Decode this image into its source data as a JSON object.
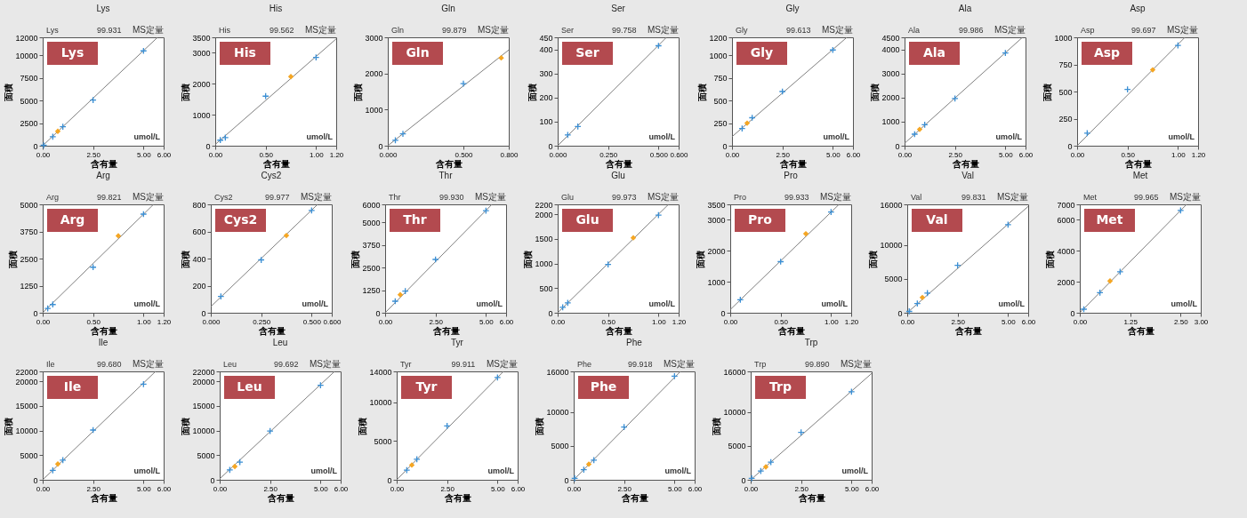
{
  "chart_data": [
    {
      "type": "scatter",
      "title": "Lys",
      "xlabel": "含有量",
      "ylabel": "面積",
      "annotations": [
        "Lys",
        "99.931",
        "MS定量",
        "Lys",
        "umol/L"
      ],
      "xlim": [
        0,
        6
      ],
      "xticks": [
        {
          "value": 0,
          "label": "0.00"
        },
        {
          "value": 2.5,
          "label": "2.50"
        },
        {
          "value": 5,
          "label": "5.00"
        },
        {
          "value": 6,
          "label": "6.00"
        }
      ],
      "ylim": [
        0,
        12000
      ],
      "yticks": [
        0,
        2500,
        5000,
        7500,
        10000,
        12000
      ],
      "series": [
        {
          "type": "line",
          "color": "#7f7f7f",
          "x": [
            0,
            5.7
          ],
          "values": [
            0,
            12000
          ]
        },
        {
          "type": "scatter",
          "marker": "cross",
          "color": "#3b8fd4",
          "x": [
            0.05,
            0.5,
            1.0,
            2.5,
            5.0
          ],
          "values": [
            50,
            1000,
            2100,
            5050,
            10500
          ]
        },
        {
          "type": "scatter",
          "marker": "diamond",
          "color": "#f5a623",
          "x": [
            0.75
          ],
          "values": [
            1600
          ]
        }
      ]
    },
    {
      "type": "scatter",
      "title": "His",
      "xlabel": "含有量",
      "ylabel": "面積",
      "annotations": [
        "His",
        "99.562",
        "MS定量",
        "His",
        "umol/L"
      ],
      "xlim": [
        0,
        1.2
      ],
      "xticks": [
        {
          "value": 0,
          "label": "0.00"
        },
        {
          "value": 0.5,
          "label": "0.50"
        },
        {
          "value": 1,
          "label": "1.00"
        },
        {
          "value": 1.2,
          "label": "1.20"
        }
      ],
      "ylim": [
        0,
        3500
      ],
      "yticks": [
        0,
        1000,
        2000,
        3000,
        3500
      ],
      "series": [
        {
          "type": "line",
          "color": "#7f7f7f",
          "x": [
            0,
            1.2
          ],
          "values": [
            40,
            3450
          ]
        },
        {
          "type": "scatter",
          "marker": "cross",
          "color": "#3b8fd4",
          "x": [
            0.05,
            0.1,
            0.5,
            1.0
          ],
          "values": [
            180,
            260,
            1600,
            2850
          ]
        },
        {
          "type": "scatter",
          "marker": "diamond",
          "color": "#f5a623",
          "x": [
            0.75
          ],
          "values": [
            2230
          ]
        }
      ]
    },
    {
      "type": "scatter",
      "title": "Gln",
      "xlabel": "含有量",
      "ylabel": "面積",
      "annotations": [
        "Gln",
        "99.879",
        "MS定量",
        "Gln"
      ],
      "xlim": [
        0,
        0.8
      ],
      "xticks": [
        {
          "value": 0,
          "label": "0.000"
        },
        {
          "value": 0.5,
          "label": "0.500"
        },
        {
          "value": 0.8,
          "label": "0.800"
        }
      ],
      "ylim": [
        0,
        3000
      ],
      "yticks": [
        0,
        1000,
        2000,
        3000
      ],
      "series": [
        {
          "type": "line",
          "color": "#7f7f7f",
          "x": [
            0,
            0.8
          ],
          "values": [
            0,
            2650
          ]
        },
        {
          "type": "scatter",
          "marker": "cross",
          "color": "#3b8fd4",
          "x": [
            0.05,
            0.1,
            0.5
          ],
          "values": [
            150,
            330,
            1720
          ]
        },
        {
          "type": "scatter",
          "marker": "diamond",
          "color": "#f5a623",
          "x": [
            0.75
          ],
          "values": [
            2430
          ]
        }
      ]
    },
    {
      "type": "scatter",
      "title": "Ser",
      "xlabel": "含有量",
      "ylabel": "面積",
      "annotations": [
        "Ser",
        "99.758",
        "MS定量",
        "Ser",
        "umol/L"
      ],
      "xlim": [
        0,
        0.6
      ],
      "xticks": [
        {
          "value": 0,
          "label": "0.000"
        },
        {
          "value": 0.25,
          "label": "0.250"
        },
        {
          "value": 0.5,
          "label": "0.500"
        },
        {
          "value": 0.6,
          "label": "0.600"
        }
      ],
      "ylim": [
        0,
        450
      ],
      "yticks": [
        0,
        100,
        200,
        300,
        400,
        450
      ],
      "series": [
        {
          "type": "line",
          "color": "#7f7f7f",
          "x": [
            0,
            0.54
          ],
          "values": [
            0,
            450
          ]
        },
        {
          "type": "scatter",
          "marker": "cross",
          "color": "#3b8fd4",
          "x": [
            0.05,
            0.1,
            0.5
          ],
          "values": [
            45,
            80,
            415
          ]
        }
      ]
    },
    {
      "type": "scatter",
      "title": "Gly",
      "xlabel": "含有量",
      "ylabel": "面積",
      "annotations": [
        "Gly",
        "99.613",
        "MS定量",
        "Gly",
        "umol/L"
      ],
      "xlim": [
        0,
        6
      ],
      "xticks": [
        {
          "value": 0,
          "label": "0.00"
        },
        {
          "value": 2.5,
          "label": "2.50"
        },
        {
          "value": 5,
          "label": "5.00"
        },
        {
          "value": 6,
          "label": "6.00"
        }
      ],
      "ylim": [
        0,
        1200
      ],
      "yticks": [
        0,
        250,
        500,
        750,
        1000,
        1200
      ],
      "series": [
        {
          "type": "line",
          "color": "#7f7f7f",
          "x": [
            0,
            5.7
          ],
          "values": [
            100,
            1200
          ]
        },
        {
          "type": "scatter",
          "marker": "cross",
          "color": "#3b8fd4",
          "x": [
            0.5,
            1.0,
            2.5,
            5.0
          ],
          "values": [
            190,
            310,
            600,
            1060
          ]
        },
        {
          "type": "scatter",
          "marker": "diamond",
          "color": "#f5a623",
          "x": [
            0.75
          ],
          "values": [
            250
          ]
        }
      ]
    },
    {
      "type": "scatter",
      "title": "Ala",
      "xlabel": "含有量",
      "ylabel": "面積",
      "annotations": [
        "Ala",
        "99.986",
        "MS定量",
        "Ala",
        "umol/L"
      ],
      "xlim": [
        0,
        6
      ],
      "xticks": [
        {
          "value": 0,
          "label": "0.00"
        },
        {
          "value": 2.5,
          "label": "2.50"
        },
        {
          "value": 5,
          "label": "5.00"
        },
        {
          "value": 6,
          "label": "6.00"
        }
      ],
      "ylim": [
        0,
        4500
      ],
      "yticks": [
        0,
        1000,
        2000,
        3000,
        4000,
        4500
      ],
      "series": [
        {
          "type": "line",
          "color": "#7f7f7f",
          "x": [
            0,
            5.85
          ],
          "values": [
            100,
            4500
          ]
        },
        {
          "type": "scatter",
          "marker": "cross",
          "color": "#3b8fd4",
          "x": [
            0.5,
            1.0,
            2.5,
            5.0
          ],
          "values": [
            480,
            870,
            1960,
            3850
          ]
        },
        {
          "type": "scatter",
          "marker": "diamond",
          "color": "#f5a623",
          "x": [
            0.75
          ],
          "values": [
            680
          ]
        }
      ]
    },
    {
      "type": "scatter",
      "title": "Asp",
      "xlabel": "含有量",
      "ylabel": "面積",
      "annotations": [
        "Asp",
        "99.697",
        "MS定量",
        "Asp",
        "umol/L"
      ],
      "xlim": [
        0,
        1.2
      ],
      "xticks": [
        {
          "value": 0,
          "label": "0.00"
        },
        {
          "value": 0.5,
          "label": "0.50"
        },
        {
          "value": 1,
          "label": "1.00"
        },
        {
          "value": 1.2,
          "label": "1.20"
        }
      ],
      "ylim": [
        0,
        1000
      ],
      "yticks": [
        0,
        250,
        500,
        750,
        1000
      ],
      "series": [
        {
          "type": "line",
          "color": "#7f7f7f",
          "x": [
            0,
            1.07
          ],
          "values": [
            0,
            1000
          ]
        },
        {
          "type": "scatter",
          "marker": "cross",
          "color": "#3b8fd4",
          "x": [
            0.1,
            0.5,
            1.0
          ],
          "values": [
            115,
            520,
            925
          ]
        },
        {
          "type": "scatter",
          "marker": "diamond",
          "color": "#f5a623",
          "x": [
            0.75
          ],
          "values": [
            700
          ]
        }
      ]
    },
    {
      "type": "scatter",
      "title": "Arg",
      "xlabel": "含有量",
      "ylabel": "面積",
      "annotations": [
        "Arg",
        "99.821",
        "MS定量",
        "Arg",
        "umol/L"
      ],
      "xlim": [
        0,
        1.2
      ],
      "xticks": [
        {
          "value": 0,
          "label": "0.00"
        },
        {
          "value": 0.5,
          "label": "0.50"
        },
        {
          "value": 1,
          "label": "1.00"
        },
        {
          "value": 1.2,
          "label": "1.20"
        }
      ],
      "ylim": [
        0,
        5000
      ],
      "yticks": [
        0,
        1250,
        2500,
        3750,
        5000
      ],
      "series": [
        {
          "type": "line",
          "color": "#7f7f7f",
          "x": [
            0,
            1.1
          ],
          "values": [
            0,
            5000
          ]
        },
        {
          "type": "scatter",
          "marker": "cross",
          "color": "#3b8fd4",
          "x": [
            0.05,
            0.1,
            0.5,
            1.0
          ],
          "values": [
            200,
            380,
            2100,
            4550
          ]
        },
        {
          "type": "scatter",
          "marker": "diamond",
          "color": "#f5a623",
          "x": [
            0.75
          ],
          "values": [
            3550
          ]
        }
      ]
    },
    {
      "type": "scatter",
      "title": "Cys2",
      "xlabel": "含有量",
      "ylabel": "面積",
      "annotations": [
        "Cys2",
        "99.977",
        "MS定量",
        "Cys2",
        "umol/L"
      ],
      "xlim": [
        0,
        0.6
      ],
      "xticks": [
        {
          "value": 0,
          "label": "0.000"
        },
        {
          "value": 0.25,
          "label": "0.250"
        },
        {
          "value": 0.5,
          "label": "0.500"
        },
        {
          "value": 0.6,
          "label": "0.600"
        }
      ],
      "ylim": [
        0,
        800
      ],
      "yticks": [
        0,
        200,
        400,
        600,
        800
      ],
      "series": [
        {
          "type": "line",
          "color": "#7f7f7f",
          "x": [
            0,
            0.53
          ],
          "values": [
            45,
            800
          ]
        },
        {
          "type": "scatter",
          "marker": "cross",
          "color": "#3b8fd4",
          "x": [
            0.05,
            0.25,
            0.5
          ],
          "values": [
            120,
            390,
            755
          ]
        },
        {
          "type": "scatter",
          "marker": "diamond",
          "color": "#f5a623",
          "x": [
            0.375
          ],
          "values": [
            570
          ]
        }
      ]
    },
    {
      "type": "scatter",
      "title": "Thr",
      "xlabel": "含有量",
      "ylabel": "面積",
      "annotations": [
        "Thr",
        "99.930",
        "MS定量",
        "Thr",
        "umol/L"
      ],
      "xlim": [
        0,
        6
      ],
      "xticks": [
        {
          "value": 0,
          "label": "0.00"
        },
        {
          "value": 2.5,
          "label": "2.50"
        },
        {
          "value": 5,
          "label": "5.00"
        },
        {
          "value": 6,
          "label": "6.00"
        }
      ],
      "ylim": [
        0,
        6000
      ],
      "yticks": [
        0,
        1250,
        2500,
        3750,
        5000,
        6000
      ],
      "series": [
        {
          "type": "line",
          "color": "#7f7f7f",
          "x": [
            0,
            5.3
          ],
          "values": [
            0,
            6000
          ]
        },
        {
          "type": "scatter",
          "marker": "cross",
          "color": "#3b8fd4",
          "x": [
            0.5,
            1.0,
            2.5,
            5.0
          ],
          "values": [
            640,
            1200,
            2950,
            5650
          ]
        },
        {
          "type": "scatter",
          "marker": "diamond",
          "color": "#f5a623",
          "x": [
            0.75
          ],
          "values": [
            1000
          ]
        }
      ]
    },
    {
      "type": "scatter",
      "title": "Glu",
      "xlabel": "含有量",
      "ylabel": "面積",
      "annotations": [
        "Glu",
        "99.973",
        "MS定量",
        "Glu",
        "umol/L"
      ],
      "xlim": [
        0,
        1.2
      ],
      "xticks": [
        {
          "value": 0,
          "label": "0.00"
        },
        {
          "value": 0.5,
          "label": "0.50"
        },
        {
          "value": 1,
          "label": "1.00"
        },
        {
          "value": 1.2,
          "label": "1.20"
        }
      ],
      "ylim": [
        0,
        2200
      ],
      "yticks": [
        0,
        500,
        1000,
        1500,
        2000,
        2200
      ],
      "series": [
        {
          "type": "line",
          "color": "#7f7f7f",
          "x": [
            0,
            1.1
          ],
          "values": [
            0,
            2200
          ]
        },
        {
          "type": "scatter",
          "marker": "cross",
          "color": "#3b8fd4",
          "x": [
            0.05,
            0.1,
            0.5,
            1.0
          ],
          "values": [
            110,
            200,
            980,
            1980
          ]
        },
        {
          "type": "scatter",
          "marker": "diamond",
          "color": "#f5a623",
          "x": [
            0.75
          ],
          "values": [
            1520
          ]
        }
      ]
    },
    {
      "type": "scatter",
      "title": "Pro",
      "xlabel": "含有量",
      "ylabel": "面積",
      "annotations": [
        "Pro",
        "99.933",
        "MS定量",
        "Pro",
        "umol/L"
      ],
      "xlim": [
        0,
        1.2
      ],
      "xticks": [
        {
          "value": 0,
          "label": "0.00"
        },
        {
          "value": 0.5,
          "label": "0.50"
        },
        {
          "value": 1,
          "label": "1.00"
        },
        {
          "value": 1.2,
          "label": "1.20"
        }
      ],
      "ylim": [
        0,
        3500
      ],
      "yticks": [
        0,
        1000,
        2000,
        3000,
        3500
      ],
      "series": [
        {
          "type": "line",
          "color": "#7f7f7f",
          "x": [
            0,
            1.08
          ],
          "values": [
            100,
            3500
          ]
        },
        {
          "type": "scatter",
          "marker": "cross",
          "color": "#3b8fd4",
          "x": [
            0.1,
            0.5,
            1.0
          ],
          "values": [
            420,
            1650,
            3250
          ]
        },
        {
          "type": "scatter",
          "marker": "diamond",
          "color": "#f5a623",
          "x": [
            0.75
          ],
          "values": [
            2550
          ]
        }
      ]
    },
    {
      "type": "scatter",
      "title": "Val",
      "xlabel": "含有量",
      "ylabel": "面積",
      "annotations": [
        "Val",
        "99.831",
        "MS定量",
        "Val",
        "umol/L"
      ],
      "xlim": [
        0,
        6
      ],
      "xticks": [
        {
          "value": 0,
          "label": "0.00"
        },
        {
          "value": 2.5,
          "label": "2.50"
        },
        {
          "value": 5,
          "label": "5.00"
        },
        {
          "value": 6,
          "label": "6.00"
        }
      ],
      "ylim": [
        0,
        16000
      ],
      "yticks": [
        0,
        5000,
        10000,
        16000
      ],
      "series": [
        {
          "type": "line",
          "color": "#7f7f7f",
          "x": [
            0,
            6
          ],
          "values": [
            0,
            15700
          ]
        },
        {
          "type": "scatter",
          "marker": "cross",
          "color": "#3b8fd4",
          "x": [
            0.1,
            0.5,
            1.0,
            2.5,
            5.0
          ],
          "values": [
            200,
            1350,
            2900,
            7000,
            13000
          ]
        },
        {
          "type": "scatter",
          "marker": "diamond",
          "color": "#f5a623",
          "x": [
            0.75
          ],
          "values": [
            2250
          ]
        }
      ]
    },
    {
      "type": "scatter",
      "title": "Met",
      "xlabel": "含有量",
      "ylabel": "面積",
      "annotations": [
        "Met",
        "99.965",
        "MS定量",
        "Met",
        "umol/L"
      ],
      "xlim": [
        0,
        3
      ],
      "xticks": [
        {
          "value": 0,
          "label": "0.00"
        },
        {
          "value": 1.25,
          "label": "1.25"
        },
        {
          "value": 2.5,
          "label": "2.50"
        },
        {
          "value": 3,
          "label": "3.00"
        }
      ],
      "ylim": [
        0,
        7000
      ],
      "yticks": [
        0,
        2000,
        4000,
        6000,
        7000
      ],
      "series": [
        {
          "type": "line",
          "color": "#7f7f7f",
          "x": [
            0,
            2.65
          ],
          "values": [
            0,
            7000
          ]
        },
        {
          "type": "scatter",
          "marker": "cross",
          "color": "#3b8fd4",
          "x": [
            0.1,
            0.5,
            1.0,
            2.5
          ],
          "values": [
            230,
            1300,
            2650,
            6600
          ]
        },
        {
          "type": "scatter",
          "marker": "diamond",
          "color": "#f5a623",
          "x": [
            0.75
          ],
          "values": [
            2050
          ]
        }
      ]
    },
    {
      "type": "scatter",
      "title": "Ile",
      "xlabel": "含有量",
      "ylabel": "面積",
      "annotations": [
        "Ile",
        "99.680",
        "MS定量",
        "Ile",
        "umol/L"
      ],
      "xlim": [
        0,
        6
      ],
      "xticks": [
        {
          "value": 0,
          "label": "0.00"
        },
        {
          "value": 2.5,
          "label": "2.50"
        },
        {
          "value": 5,
          "label": "5.00"
        },
        {
          "value": 6,
          "label": "6.00"
        }
      ],
      "ylim": [
        0,
        22000
      ],
      "yticks": [
        0,
        5000,
        10000,
        15000,
        20000,
        22000
      ],
      "series": [
        {
          "type": "line",
          "color": "#7f7f7f",
          "x": [
            0,
            5.6
          ],
          "values": [
            0,
            22000
          ]
        },
        {
          "type": "scatter",
          "marker": "cross",
          "color": "#3b8fd4",
          "x": [
            0.5,
            1.0,
            2.5,
            5.0
          ],
          "values": [
            1900,
            4000,
            10100,
            19400
          ]
        },
        {
          "type": "scatter",
          "marker": "diamond",
          "color": "#f5a623",
          "x": [
            0.75
          ],
          "values": [
            3200
          ]
        }
      ]
    },
    {
      "type": "scatter",
      "title": "Leu",
      "xlabel": "含有量",
      "ylabel": "面積",
      "annotations": [
        "Leu",
        "99.692",
        "MS定量",
        "Leu",
        "umol/L"
      ],
      "xlim": [
        0,
        6
      ],
      "xticks": [
        {
          "value": 0,
          "label": "0.00"
        },
        {
          "value": 2.5,
          "label": "2.50"
        },
        {
          "value": 5,
          "label": "5.00"
        },
        {
          "value": 6,
          "label": "6.00"
        }
      ],
      "ylim": [
        0,
        22000
      ],
      "yticks": [
        0,
        5000,
        10000,
        15000,
        20000,
        22000
      ],
      "series": [
        {
          "type": "line",
          "color": "#7f7f7f",
          "x": [
            0,
            5.7
          ],
          "values": [
            200,
            22000
          ]
        },
        {
          "type": "scatter",
          "marker": "cross",
          "color": "#3b8fd4",
          "x": [
            0.5,
            1.0,
            2.5,
            5.0
          ],
          "values": [
            2000,
            3600,
            9900,
            19200
          ]
        },
        {
          "type": "scatter",
          "marker": "diamond",
          "color": "#f5a623",
          "x": [
            0.75
          ],
          "values": [
            2700
          ]
        }
      ]
    },
    {
      "type": "scatter",
      "title": "Tyr",
      "xlabel": "含有量",
      "ylabel": "面積",
      "annotations": [
        "Tyr",
        "99.911",
        "MS定量",
        "Tyr",
        "umol/L"
      ],
      "xlim": [
        0,
        6
      ],
      "xticks": [
        {
          "value": 0,
          "label": "0.00"
        },
        {
          "value": 2.5,
          "label": "2.50"
        },
        {
          "value": 5,
          "label": "5.00"
        },
        {
          "value": 6,
          "label": "6.00"
        }
      ],
      "ylim": [
        0,
        14000
      ],
      "yticks": [
        0,
        5000,
        10000,
        14000
      ],
      "series": [
        {
          "type": "line",
          "color": "#7f7f7f",
          "x": [
            0,
            5.3
          ],
          "values": [
            0,
            14000
          ]
        },
        {
          "type": "scatter",
          "marker": "cross",
          "color": "#3b8fd4",
          "x": [
            0.5,
            1.0,
            2.5,
            5.0
          ],
          "values": [
            1250,
            2650,
            6950,
            13200
          ]
        },
        {
          "type": "scatter",
          "marker": "diamond",
          "color": "#f5a623",
          "x": [
            0.75
          ],
          "values": [
            1900
          ]
        }
      ]
    },
    {
      "type": "scatter",
      "title": "Phe",
      "xlabel": "含有量",
      "ylabel": "面積",
      "annotations": [
        "Phe",
        "99.918",
        "MS定量",
        "Phe",
        "umol/L"
      ],
      "xlim": [
        0,
        6
      ],
      "xticks": [
        {
          "value": 0,
          "label": "0.00"
        },
        {
          "value": 2.5,
          "label": "2.50"
        },
        {
          "value": 5,
          "label": "5.00"
        },
        {
          "value": 6,
          "label": "6.00"
        }
      ],
      "ylim": [
        0,
        16000
      ],
      "yticks": [
        0,
        5000,
        10000,
        16000
      ],
      "series": [
        {
          "type": "line",
          "color": "#7f7f7f",
          "x": [
            0,
            5.3
          ],
          "values": [
            0,
            16000
          ]
        },
        {
          "type": "scatter",
          "marker": "cross",
          "color": "#3b8fd4",
          "x": [
            0.05,
            0.5,
            1.0,
            2.5,
            5.0
          ],
          "values": [
            200,
            1500,
            2900,
            7800,
            15300
          ]
        },
        {
          "type": "scatter",
          "marker": "diamond",
          "color": "#f5a623",
          "x": [
            0.75
          ],
          "values": [
            2300
          ]
        }
      ]
    },
    {
      "type": "scatter",
      "title": "Trp",
      "xlabel": "含有量",
      "ylabel": "面積",
      "annotations": [
        "Trp",
        "99.890",
        "MS定量",
        "Trp",
        "umol/L"
      ],
      "xlim": [
        0,
        6
      ],
      "xticks": [
        {
          "value": 0,
          "label": "0.00"
        },
        {
          "value": 2.5,
          "label": "2.50"
        },
        {
          "value": 5,
          "label": "5.00"
        },
        {
          "value": 6,
          "label": "6.00"
        }
      ],
      "ylim": [
        0,
        16000
      ],
      "yticks": [
        0,
        5000,
        10000,
        16000
      ],
      "series": [
        {
          "type": "line",
          "color": "#7f7f7f",
          "x": [
            0,
            6
          ],
          "values": [
            0,
            15700
          ]
        },
        {
          "type": "scatter",
          "marker": "cross",
          "color": "#3b8fd4",
          "x": [
            0.05,
            0.5,
            1.0,
            2.5,
            5.0
          ],
          "values": [
            200,
            1300,
            2600,
            7000,
            13000
          ]
        },
        {
          "type": "scatter",
          "marker": "diamond",
          "color": "#f5a623",
          "x": [
            0.75
          ],
          "values": [
            1900
          ]
        }
      ]
    }
  ]
}
